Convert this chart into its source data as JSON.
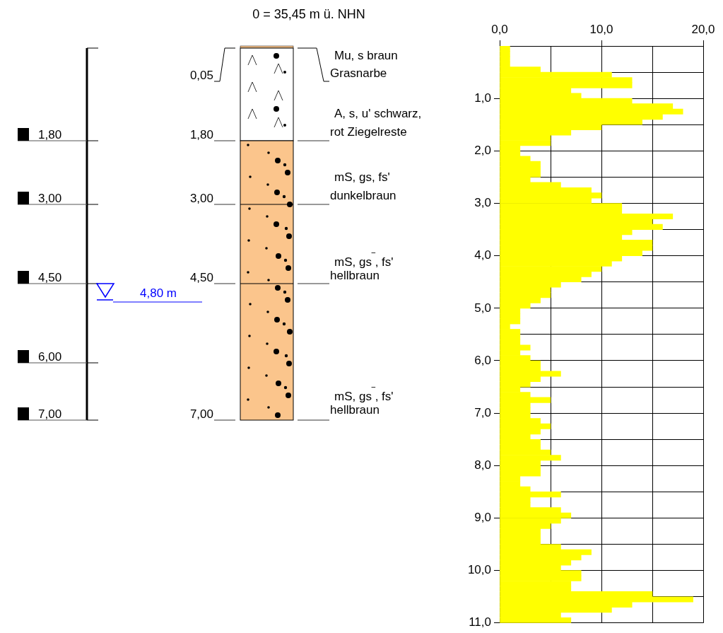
{
  "chart_data": {
    "type": "histogram",
    "orientation": "horizontal",
    "title": "0 = 35,45 m ü. NHN",
    "bins": [
      0,
      0.1,
      0.2,
      0.3,
      0.4,
      0.5,
      0.6,
      0.7,
      0.8,
      0.9,
      1.0,
      1.1,
      1.2,
      1.3,
      1.4,
      1.5,
      1.6,
      1.7,
      1.8,
      1.9,
      2.0,
      2.1,
      2.2,
      2.3,
      2.4,
      2.5,
      2.6,
      2.7,
      2.8,
      2.9,
      3.0,
      3.1,
      3.2,
      3.3,
      3.4,
      3.5,
      3.6,
      3.7,
      3.8,
      3.9,
      4.0,
      4.1,
      4.2,
      4.3,
      4.4,
      4.5,
      4.6,
      4.7,
      4.8,
      4.9,
      5.0,
      5.1,
      5.2,
      5.3,
      5.4,
      5.5,
      5.6,
      5.7,
      5.8,
      5.9,
      6.0,
      6.1,
      6.2,
      6.3,
      6.4,
      6.5,
      6.6,
      6.7,
      6.8,
      6.9,
      7.0,
      7.1,
      7.2,
      7.3,
      7.4,
      7.5,
      7.6,
      7.7,
      7.8,
      7.9,
      8.0,
      8.1,
      8.2,
      8.3,
      8.4,
      8.5,
      8.6,
      8.7,
      8.8,
      8.9,
      9.0,
      9.1,
      9.2,
      9.3,
      9.4,
      9.5,
      9.6,
      9.7,
      9.8,
      9.9,
      10.0,
      10.1,
      10.2,
      10.3,
      10.4,
      10.5,
      10.6,
      10.7,
      10.8,
      10.9,
      11.0
    ],
    "values": [
      1,
      1,
      1,
      1,
      4,
      11,
      13,
      13,
      7,
      8,
      13,
      17,
      18,
      16,
      14,
      10,
      7,
      5,
      5,
      2,
      2,
      3,
      4,
      4,
      4,
      3,
      6,
      9,
      10,
      9,
      12,
      12,
      17,
      15,
      16,
      13,
      12,
      15,
      15,
      14,
      12,
      11,
      10,
      9,
      8,
      6,
      5,
      5,
      4,
      3,
      2,
      2,
      2,
      1,
      2,
      2,
      2,
      3,
      2,
      3,
      4,
      4,
      6,
      4,
      3,
      2,
      3,
      5,
      3,
      3,
      3,
      4,
      5,
      4,
      3,
      4,
      4,
      5,
      6,
      4,
      4,
      4,
      2,
      2,
      3,
      6,
      3,
      3,
      6,
      7,
      6,
      5,
      4,
      4,
      4,
      6,
      9,
      8,
      7,
      6,
      8,
      8,
      7,
      7,
      15,
      19,
      13,
      11,
      6,
      7
    ],
    "color": "#ffff00",
    "xlim": [
      0,
      20
    ],
    "xticks": [
      {
        "value": 0,
        "label": "0,0"
      },
      {
        "value": 5,
        "label": null
      },
      {
        "value": 10,
        "label": "10,0"
      },
      {
        "value": 15,
        "label": null
      },
      {
        "value": 20,
        "label": "20,0"
      }
    ],
    "ylim": [
      11,
      0
    ],
    "yticks": [
      {
        "value": 0,
        "label": null
      },
      {
        "value": 0.5,
        "label": null
      },
      {
        "value": 1,
        "label": "1,0"
      },
      {
        "value": 1.5,
        "label": null
      },
      {
        "value": 2,
        "label": "2,0"
      },
      {
        "value": 2.5,
        "label": null
      },
      {
        "value": 3,
        "label": "3,0"
      },
      {
        "value": 3.5,
        "label": null
      },
      {
        "value": 4,
        "label": "4,0"
      },
      {
        "value": 4.5,
        "label": null
      },
      {
        "value": 5,
        "label": "5,0"
      },
      {
        "value": 5.5,
        "label": null
      },
      {
        "value": 6,
        "label": "6,0"
      },
      {
        "value": 6.5,
        "label": null
      },
      {
        "value": 7,
        "label": "7,0"
      },
      {
        "value": 7.5,
        "label": null
      },
      {
        "value": 8,
        "label": "8,0"
      },
      {
        "value": 8.5,
        "label": null
      },
      {
        "value": 9,
        "label": "9,0"
      },
      {
        "value": 9.5,
        "label": null
      },
      {
        "value": 10,
        "label": "10,0"
      },
      {
        "value": 10.5,
        "label": null
      },
      {
        "value": 11,
        "label": "11,0"
      }
    ],
    "grid": true,
    "legend": false,
    "annotations": [
      "1,80",
      "3,00",
      "4,50",
      "6,00",
      "7,00",
      "4,80 m",
      "0,05",
      "1,80",
      "3,00",
      "4,50",
      "7,00",
      "Mu, s braun",
      "Grasnarbe",
      "A, s, u' schwarz,",
      "rot Ziegelreste",
      "mS, gs, fs'",
      "dunkelbraun",
      "mS, gs$^{‾}$, fs'",
      "hellbraun",
      "mS, gs$^{‾}$, fs'",
      "hellbraun"
    ]
  }
}
